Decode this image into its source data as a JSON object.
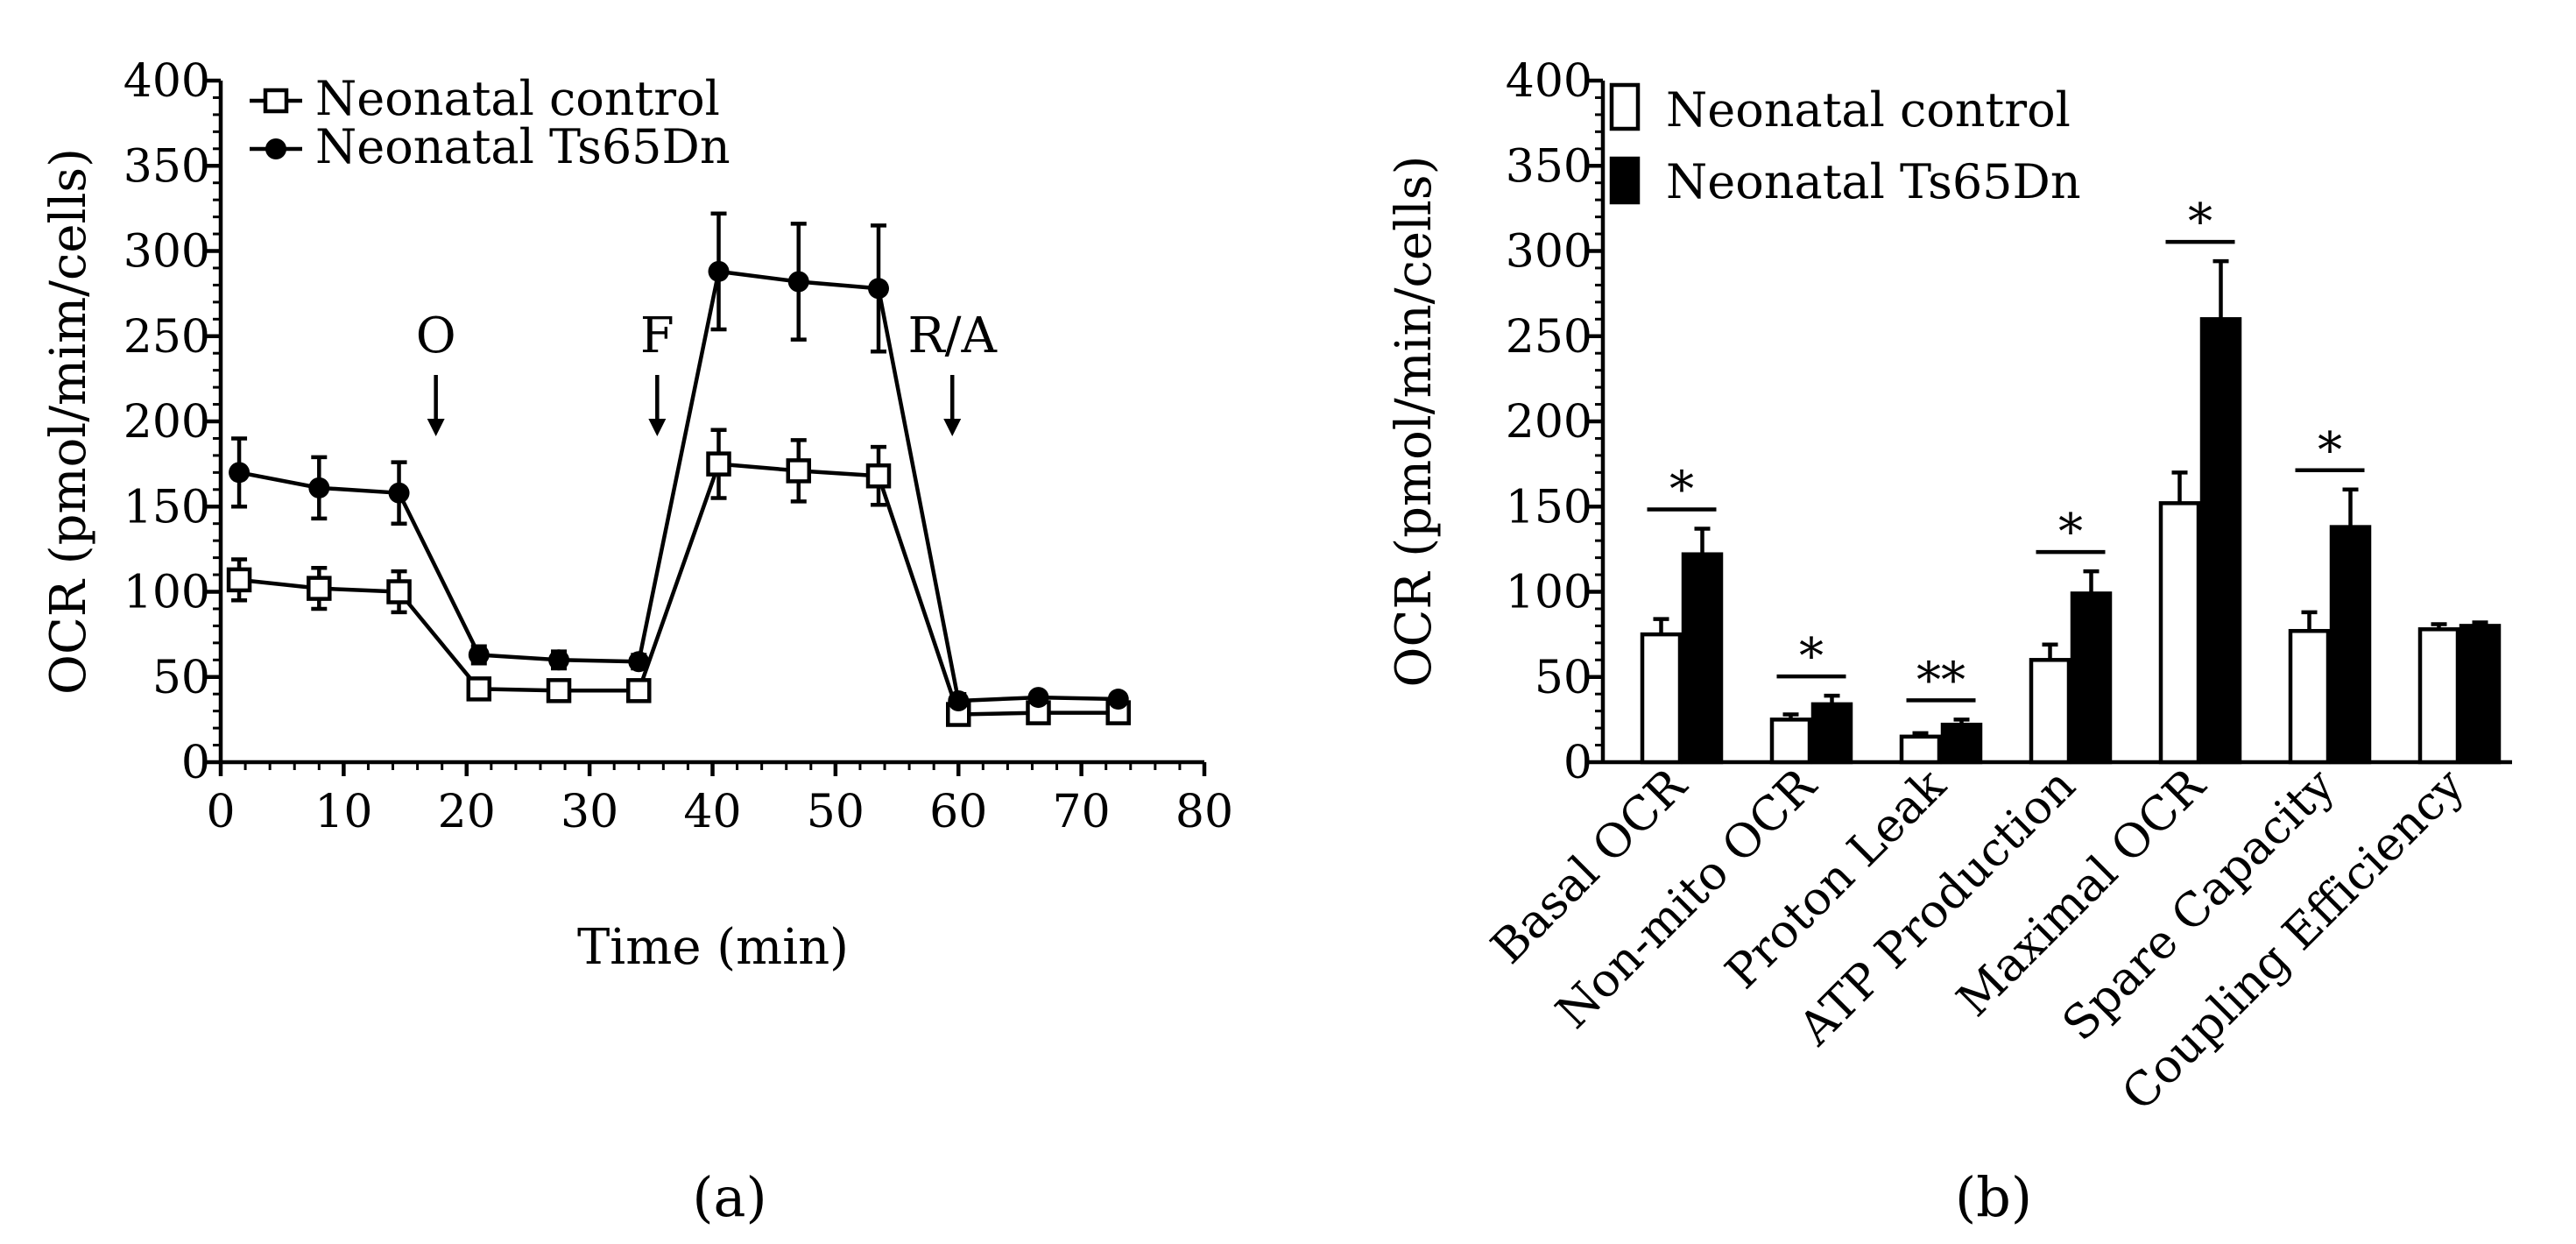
{
  "chart_data": [
    {
      "type": "line",
      "panel_label": "(a)",
      "xlabel": "Time (min)",
      "ylabel": "OCR (pmol/mim/cells)",
      "xlim": [
        0,
        80
      ],
      "ylim": [
        0,
        400
      ],
      "x_ticks": [
        0,
        10,
        20,
        30,
        40,
        50,
        60,
        70,
        80
      ],
      "y_ticks": [
        0,
        50,
        100,
        150,
        200,
        250,
        300,
        350,
        400
      ],
      "x": [
        1.5,
        8,
        14.5,
        21,
        27.5,
        34,
        40.5,
        47,
        53.5,
        60,
        66.5,
        73
      ],
      "series": [
        {
          "name": "Neonatal control",
          "marker": "open-square",
          "values": [
            107,
            102,
            100,
            43,
            42,
            42,
            175,
            171,
            168,
            28,
            29,
            29
          ],
          "errors": [
            12,
            12,
            12,
            3,
            2,
            2,
            20,
            18,
            17,
            4,
            3,
            3
          ]
        },
        {
          "name": "Neonatal Ts65Dn",
          "marker": "filled-circle",
          "values": [
            170,
            161,
            158,
            63,
            60,
            59,
            288,
            282,
            278,
            36,
            38,
            37
          ],
          "errors": [
            20,
            18,
            18,
            5,
            5,
            4,
            34,
            34,
            37,
            4,
            3,
            3
          ]
        }
      ],
      "annotations": [
        {
          "label": "O",
          "x": 17.5
        },
        {
          "label": "F",
          "x": 35.5
        },
        {
          "label": "R/A",
          "x": 59.5
        }
      ]
    },
    {
      "type": "bar",
      "panel_label": "(b)",
      "ylabel": "OCR (pmol/min/cells)",
      "ylim": [
        0,
        400
      ],
      "y_ticks": [
        0,
        50,
        100,
        150,
        200,
        250,
        300,
        350,
        400
      ],
      "categories": [
        "Basal OCR",
        "Non-mito OCR",
        "Proton Leak",
        "ATP Production",
        "Maximal OCR",
        "Spare Capacity",
        "Coupling Efficiency"
      ],
      "series": [
        {
          "name": "Neonatal control",
          "fill": "open",
          "values": [
            75,
            25,
            15,
            60,
            152,
            77,
            78
          ],
          "errors": [
            9,
            3,
            2,
            9,
            18,
            11,
            3
          ]
        },
        {
          "name": "Neonatal Ts65Dn",
          "fill": "filled",
          "values": [
            122,
            34,
            22,
            99,
            260,
            138,
            80
          ],
          "errors": [
            15,
            5,
            3,
            13,
            34,
            22,
            2
          ]
        }
      ],
      "significance": [
        "*",
        "*",
        "**",
        "*",
        "*",
        "*",
        ""
      ]
    }
  ]
}
